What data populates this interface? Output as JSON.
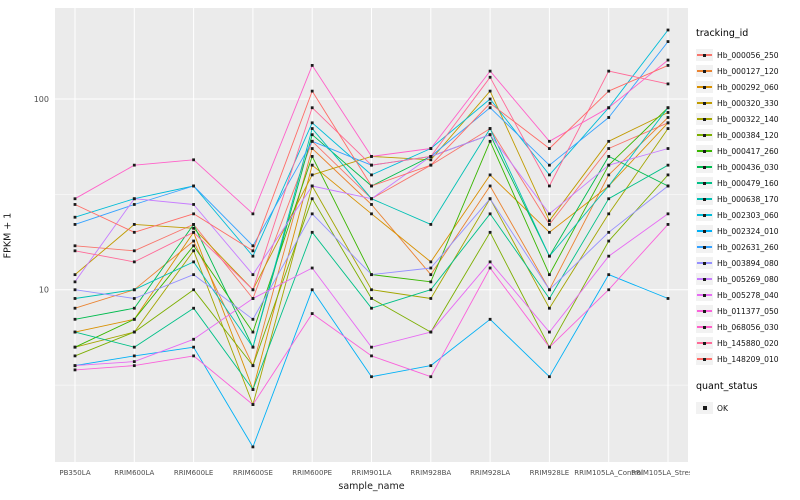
{
  "figure": {
    "background": "#FFFFFF",
    "panel_bg": "#EBEBEB",
    "grid_color": "#FFFFFF",
    "tick_label_color": "#4D4D4D",
    "point_color": "#1A1A1A"
  },
  "legend": {
    "tracking_title": "tracking_id",
    "quant_title": "quant_status",
    "quant_items": [
      {
        "label": "OK"
      }
    ]
  },
  "chart_data": {
    "type": "line",
    "title": "",
    "xlabel": "sample_name",
    "ylabel": "FPKM + 1",
    "y_scale": "log10",
    "y_ticks": [
      10,
      100
    ],
    "y_minor_ticks": [
      3.162,
      31.62
    ],
    "ylim": [
      1.25,
      300
    ],
    "grid": true,
    "legend_position": "right",
    "point_shape": "square",
    "categories": [
      "PB350LA",
      "RRIM600LA",
      "RRIM600LE",
      "RRIM600SE",
      "RRIM600PE",
      "RRIM901LA",
      "RRIM928BA",
      "RRIM928LA",
      "RRIM928LE",
      "RRIM105LA_Control",
      "RRIM105LA_Stressed"
    ],
    "series": [
      {
        "name": "Hb_000056_250",
        "color": "#F8766D",
        "values": [
          17,
          16,
          22,
          9,
          60,
          30,
          45,
          70,
          22,
          55,
          75
        ]
      },
      {
        "name": "Hb_000127_120",
        "color": "#EA8331",
        "values": [
          8,
          10,
          18,
          4,
          55,
          28,
          12,
          35,
          10,
          40,
          80
        ]
      },
      {
        "name": "Hb_000292_060",
        "color": "#D89000",
        "values": [
          6,
          7,
          20,
          3,
          45,
          25,
          14,
          40,
          20,
          35,
          75
        ]
      },
      {
        "name": "Hb_000320_330",
        "color": "#C09B00",
        "values": [
          12,
          22,
          21,
          10,
          40,
          50,
          48,
          110,
          23,
          60,
          85
        ]
      },
      {
        "name": "Hb_000322_140",
        "color": "#A3A500",
        "values": [
          5,
          6,
          16,
          2.5,
          35,
          10,
          9,
          30,
          8,
          25,
          70
        ]
      },
      {
        "name": "Hb_000384_120",
        "color": "#7CAE00",
        "values": [
          4.5,
          6,
          10,
          4,
          30,
          9,
          6,
          20,
          5,
          18,
          40
        ]
      },
      {
        "name": "Hb_000417_260",
        "color": "#39B600",
        "values": [
          5,
          7,
          17,
          6,
          50,
          12,
          11,
          60,
          12,
          45,
          90
        ]
      },
      {
        "name": "Hb_000436_030",
        "color": "#00BB4E",
        "values": [
          7,
          8,
          22,
          5,
          65,
          35,
          50,
          65,
          15,
          50,
          35
        ]
      },
      {
        "name": "Hb_000479_160",
        "color": "#00C087",
        "values": [
          6,
          5,
          8,
          3,
          20,
          8,
          10,
          25,
          9,
          30,
          45
        ]
      },
      {
        "name": "Hb_000638_170",
        "color": "#00C0B4",
        "values": [
          9,
          10,
          14,
          5,
          70,
          30,
          22,
          70,
          15,
          35,
          90
        ]
      },
      {
        "name": "Hb_002303_060",
        "color": "#00BCD8",
        "values": [
          24,
          30,
          35,
          15,
          75,
          40,
          55,
          100,
          40,
          90,
          230
        ]
      },
      {
        "name": "Hb_002324_010",
        "color": "#00B0F6",
        "values": [
          4,
          4.5,
          5,
          1.5,
          10,
          3.5,
          4,
          7,
          3.5,
          12,
          9
        ]
      },
      {
        "name": "Hb_002631_260",
        "color": "#35A2FF",
        "values": [
          22,
          28,
          35,
          17,
          60,
          45,
          50,
          90,
          45,
          80,
          200
        ]
      },
      {
        "name": "Hb_003894_080",
        "color": "#9590FF",
        "values": [
          10,
          9,
          12,
          7,
          25,
          12,
          13,
          30,
          10,
          20,
          35
        ]
      },
      {
        "name": "Hb_005269_080",
        "color": "#C77CFF",
        "values": [
          11,
          30,
          28,
          12,
          35,
          30,
          50,
          65,
          25,
          45,
          55
        ]
      },
      {
        "name": "Hb_005278_040",
        "color": "#E76BF3",
        "values": [
          4,
          4.2,
          5.5,
          9,
          13,
          5,
          6,
          14,
          6,
          15,
          25
        ]
      },
      {
        "name": "Hb_011377_050",
        "color": "#FA62DB",
        "values": [
          3.8,
          4,
          4.5,
          2.5,
          7.5,
          4.5,
          3.5,
          13,
          5,
          10,
          22
        ]
      },
      {
        "name": "Hb_068056_030",
        "color": "#FF61C9",
        "values": [
          30,
          45,
          48,
          25,
          150,
          50,
          55,
          140,
          60,
          90,
          160
        ]
      },
      {
        "name": "Hb_145880_020",
        "color": "#FF6A98",
        "values": [
          16,
          14,
          20,
          10,
          90,
          45,
          50,
          130,
          35,
          140,
          120
        ]
      },
      {
        "name": "Hb_148209_010",
        "color": "#FF6C67",
        "values": [
          28,
          20,
          25,
          16,
          110,
          35,
          45,
          95,
          55,
          110,
          150
        ]
      }
    ]
  }
}
